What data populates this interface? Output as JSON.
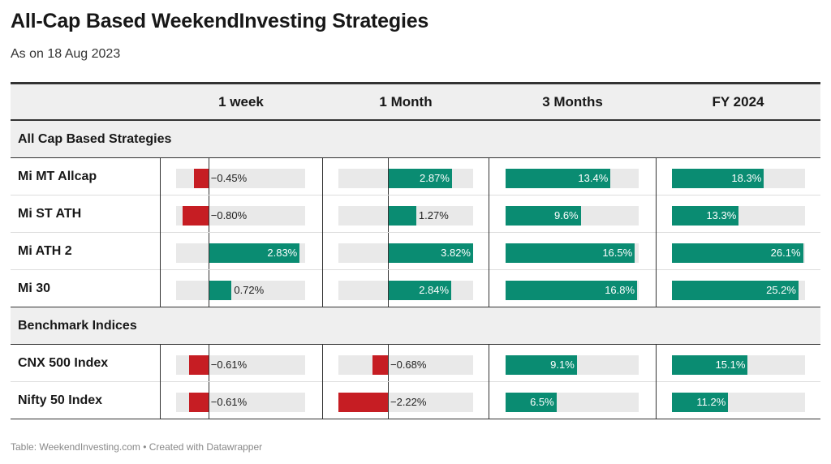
{
  "title": "All-Cap Based WeekendInvesting Strategies",
  "subtitle": "As on 18 Aug 2023",
  "footer": "Table: WeekendInvesting.com • Created with Datawrapper",
  "colors": {
    "positive": "#0a8c72",
    "negative": "#c61d23",
    "track": "#e9e9e9",
    "header_bg": "#efefef"
  },
  "chart_data": {
    "type": "table",
    "columns": [
      "",
      "1 week",
      "1 Month",
      "3 Months",
      "FY 2024"
    ],
    "groups": [
      {
        "name": "All Cap Based Strategies",
        "rows": [
          {
            "name": "Mi MT Allcap",
            "values": [
              -0.45,
              2.87,
              13.4,
              18.3
            ],
            "labels": [
              "−0.45%",
              "2.87%",
              "13.4%",
              "18.3%"
            ]
          },
          {
            "name": "Mi ST ATH",
            "values": [
              -0.8,
              1.27,
              9.6,
              13.3
            ],
            "labels": [
              "−0.80%",
              "1.27%",
              "9.6%",
              "13.3%"
            ]
          },
          {
            "name": "Mi ATH 2",
            "values": [
              2.83,
              3.82,
              16.5,
              26.1
            ],
            "labels": [
              "2.83%",
              "3.82%",
              "16.5%",
              "26.1%"
            ]
          },
          {
            "name": "Mi 30",
            "values": [
              0.72,
              2.84,
              16.8,
              25.2
            ],
            "labels": [
              "0.72%",
              "2.84%",
              "16.8%",
              "25.2%"
            ]
          }
        ]
      },
      {
        "name": "Benchmark Indices",
        "rows": [
          {
            "name": "CNX 500 Index",
            "values": [
              -0.61,
              -0.68,
              9.1,
              15.1
            ],
            "labels": [
              "−0.61%",
              "−0.68%",
              "9.1%",
              "15.1%"
            ]
          },
          {
            "name": "Nifty 50 Index",
            "values": [
              -0.61,
              -2.22,
              6.5,
              11.2
            ],
            "labels": [
              "−0.61%",
              "−2.22%",
              "6.5%",
              "11.2%"
            ]
          }
        ]
      }
    ],
    "column_ranges": [
      [
        -1.0,
        3.0
      ],
      [
        -2.22,
        3.82
      ],
      [
        0,
        17.0
      ],
      [
        0,
        26.5
      ]
    ]
  }
}
